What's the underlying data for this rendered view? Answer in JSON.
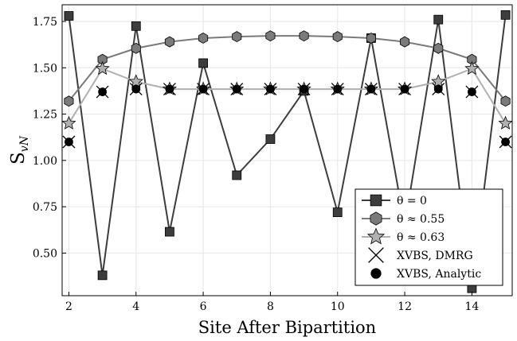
{
  "chart_data": {
    "type": "line",
    "title": "",
    "xlabel": "Site After Bipartition",
    "ylabel": "S",
    "ylabel_subscript": "vN",
    "xlim": [
      1.8,
      15.2
    ],
    "ylim": [
      0.27,
      1.84
    ],
    "xticks": [
      2,
      4,
      6,
      8,
      10,
      12,
      14
    ],
    "yticks": [
      0.5,
      0.75,
      1.0,
      1.25,
      1.5,
      1.75
    ],
    "ytick_labels": [
      "0.50",
      "0.75",
      "1.00",
      "1.25",
      "1.50",
      "1.75"
    ],
    "grid": true,
    "legend_position": "bottom-right",
    "x": [
      2,
      3,
      4,
      5,
      6,
      7,
      8,
      9,
      10,
      11,
      12,
      13,
      14,
      15
    ],
    "series": [
      {
        "name": "θ = 0",
        "marker": "square",
        "color": "#3d3d3d",
        "line": true,
        "values": [
          1.78,
          0.38,
          1.725,
          0.615,
          1.525,
          0.92,
          1.115,
          1.375,
          0.72,
          1.66,
          0.65,
          1.76,
          0.31,
          1.785
        ]
      },
      {
        "name": "θ ≈ 0.55",
        "marker": "hexagon",
        "color": "#7a7a7a",
        "line": true,
        "values": [
          1.32,
          1.545,
          1.605,
          1.64,
          1.66,
          1.668,
          1.672,
          1.672,
          1.668,
          1.66,
          1.64,
          1.605,
          1.545,
          1.32
        ]
      },
      {
        "name": "θ ≈ 0.63",
        "marker": "star",
        "color": "#b0b0b0",
        "line": true,
        "values": [
          1.2,
          1.495,
          1.425,
          1.385,
          1.385,
          1.385,
          1.385,
          1.385,
          1.385,
          1.385,
          1.385,
          1.425,
          1.495,
          1.2
        ]
      },
      {
        "name": "XVBS, DMRG",
        "marker": "x",
        "color": "#000000",
        "line": false,
        "values": [
          1.1,
          1.37,
          1.385,
          1.385,
          1.385,
          1.385,
          1.385,
          1.385,
          1.385,
          1.385,
          1.385,
          1.385,
          1.37,
          1.1
        ]
      },
      {
        "name": "XVBS, Analytic",
        "marker": "circle",
        "color": "#000000",
        "line": false,
        "values": [
          1.1,
          1.37,
          1.385,
          1.385,
          1.385,
          1.385,
          1.385,
          1.385,
          1.385,
          1.385,
          1.385,
          1.385,
          1.37,
          1.1
        ]
      }
    ]
  }
}
